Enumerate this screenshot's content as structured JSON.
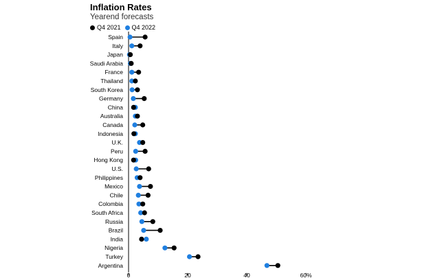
{
  "chart_data": {
    "type": "dot-plot",
    "title": "Inflation Rates",
    "subtitle": "Yearend forecasts",
    "legend": [
      {
        "name": "Q4 2021",
        "color": "#000000"
      },
      {
        "name": "Q4 2022",
        "color": "#1f7fe0"
      }
    ],
    "x_ticks": [
      "0",
      "20",
      "40",
      "60%"
    ],
    "xlim": [
      0,
      60
    ],
    "categories": [
      "Spain",
      "Italy",
      "Japan",
      "Saudi Arabia",
      "France",
      "Thailand",
      "South Korea",
      "Germany",
      "China",
      "Australia",
      "Canada",
      "Indonesia",
      "U.K.",
      "Peru",
      "Hong Kong",
      "U.S.",
      "Philippines",
      "Mexico",
      "Chile",
      "Colombia",
      "South Africa",
      "Russia",
      "Brazil",
      "India",
      "Nigeria",
      "Turkey",
      "Argentina"
    ],
    "series": [
      {
        "name": "Q4 2021",
        "values": [
          5.6,
          3.9,
          0.6,
          0.9,
          3.4,
          2.3,
          3.0,
          5.3,
          1.7,
          3.0,
          4.8,
          1.8,
          4.8,
          5.6,
          1.7,
          6.8,
          3.9,
          7.4,
          6.6,
          4.8,
          5.4,
          8.2,
          10.7,
          4.4,
          15.4,
          23.5,
          50.5
        ]
      },
      {
        "name": "Q4 2022",
        "values": [
          0.5,
          1.1,
          0.3,
          0.6,
          1.1,
          1.1,
          1.2,
          1.6,
          2.3,
          2.3,
          2.1,
          2.3,
          3.7,
          2.4,
          2.4,
          2.6,
          2.9,
          3.7,
          3.3,
          3.5,
          4.1,
          4.5,
          5.1,
          6.0,
          12.3,
          20.6,
          46.8
        ]
      }
    ]
  }
}
